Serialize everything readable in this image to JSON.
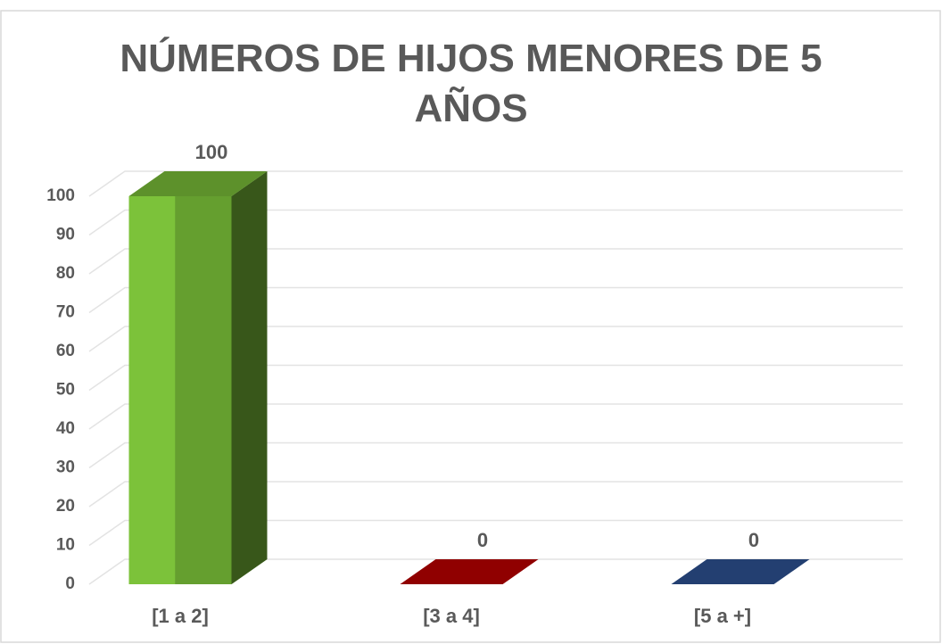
{
  "chart_data": {
    "type": "bar3d",
    "title": "NÚMEROS DE HIJOS MENORES DE 5 AÑOS",
    "categories": [
      "[1 a 2]",
      "[3 a 4]",
      "[5 a +]"
    ],
    "values": [
      100,
      0,
      0
    ],
    "colors": [
      "#7cc23a",
      "#c00000",
      "#2f5597"
    ],
    "ylim": [
      0,
      100
    ],
    "yticks": [
      0,
      10,
      20,
      30,
      40,
      50,
      60,
      70,
      80,
      90,
      100
    ],
    "grid": true
  }
}
